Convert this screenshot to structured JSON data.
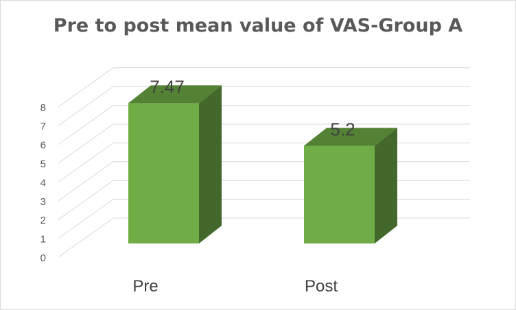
{
  "chart_data": {
    "type": "bar",
    "title": "Pre to post mean value of VAS-Group A",
    "categories": [
      "Pre",
      "Post"
    ],
    "values": [
      7.47,
      5.2
    ],
    "data_labels": [
      "7.47",
      "5.2"
    ],
    "ylim": [
      0,
      8
    ],
    "yticks": [
      "0",
      "1",
      "2",
      "3",
      "4",
      "5",
      "6",
      "7",
      "8"
    ],
    "xlabel": "",
    "ylabel": "",
    "grid": true,
    "legend": "none",
    "style": "3d-column",
    "colors": {
      "bar_front": "#70ad47",
      "bar_top": "#548235",
      "bar_side": "#43682b",
      "grid": "#d9d9d9"
    }
  }
}
